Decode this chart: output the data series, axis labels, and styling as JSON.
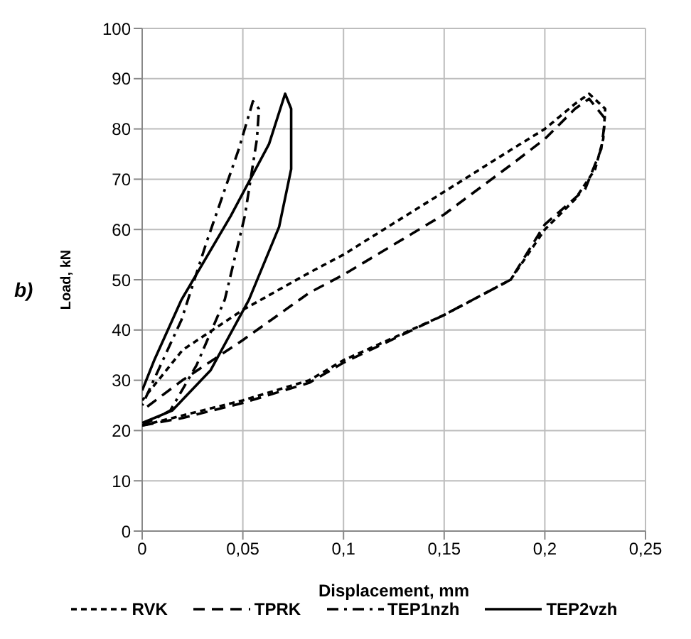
{
  "chart_data": {
    "type": "line",
    "xlabel": "Displacement, mm",
    "ylabel": "Load, kN",
    "annotations": [
      "b)"
    ],
    "xlim": [
      0,
      0.25
    ],
    "xticks": [
      0,
      {
        "value": 0.05,
        "label": "0,05"
      },
      {
        "value": 0.1,
        "label": "0,1"
      },
      {
        "value": 0.15,
        "label": "0,15"
      },
      {
        "value": 0.2,
        "label": "0,2"
      },
      {
        "value": 0.25,
        "label": "0,25"
      }
    ],
    "ylim": [
      0,
      100
    ],
    "yticks": [
      0,
      10,
      20,
      30,
      40,
      50,
      60,
      70,
      80,
      90,
      100
    ],
    "grid": true,
    "legend": "bottom",
    "marker": "none",
    "series": [
      {
        "name": "RVK",
        "color": "#000000",
        "line_style": "dotted",
        "x": [
          0,
          0.005,
          0.02,
          0.05,
          0.083,
          0.1,
          0.15,
          0.183,
          0.2,
          0.215,
          0.225,
          0.229,
          0.23,
          0.222,
          0.215,
          0.2,
          0.183,
          0.15,
          0.1,
          0.083,
          0.05,
          0.02,
          0.01,
          0
        ],
        "values": [
          21,
          21.5,
          23,
          26,
          30,
          34,
          43,
          50,
          60,
          66,
          72,
          78,
          84,
          87,
          85,
          80,
          75.8,
          67.5,
          55,
          51.4,
          44,
          36,
          31,
          26
        ]
      },
      {
        "name": "TPRK",
        "color": "#000000",
        "line_style": "dashed",
        "x": [
          0,
          0.02,
          0.05,
          0.083,
          0.1,
          0.15,
          0.183,
          0.2,
          0.22,
          0.228,
          0.23,
          0.222,
          0.215,
          0.2,
          0.183,
          0.15,
          0.1,
          0.083,
          0.05,
          0.02,
          0
        ],
        "values": [
          21,
          22.5,
          25.5,
          29.5,
          33.5,
          43,
          50,
          61,
          68,
          76,
          82,
          86,
          84,
          78,
          72.8,
          63,
          51,
          47.4,
          38,
          30,
          24
        ]
      },
      {
        "name": "TEP1nzh",
        "color": "#000000",
        "line_style": "dashdot",
        "x": [
          0,
          0.014,
          0.027,
          0.041,
          0.051,
          0.057,
          0.058,
          0.055,
          0.048,
          0.032,
          0.0195,
          0.008,
          0
        ],
        "values": [
          21,
          24,
          33,
          46,
          62.7,
          78,
          84,
          85.5,
          76,
          57.5,
          42,
          32,
          25
        ]
      },
      {
        "name": "TEP2vzh",
        "color": "#000000",
        "line_style": "solid",
        "x": [
          0,
          0.015,
          0.034,
          0.053,
          0.068,
          0.074,
          0.074,
          0.071,
          0.063,
          0.044,
          0.0195,
          0.006,
          0
        ],
        "values": [
          21.5,
          24,
          32,
          46,
          60.5,
          72,
          84,
          87,
          77,
          62.7,
          46,
          34,
          28
        ]
      }
    ]
  }
}
